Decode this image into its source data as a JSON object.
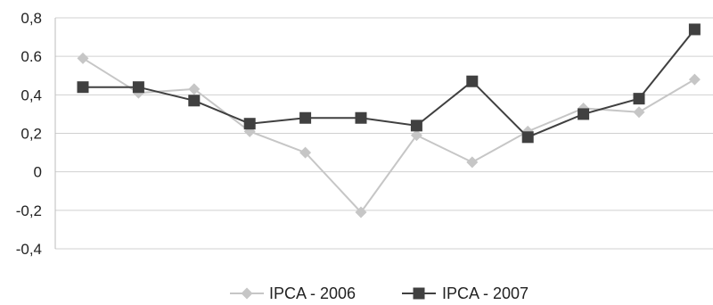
{
  "chart_data": {
    "type": "line",
    "title": "",
    "xlabel": "",
    "ylabel": "",
    "ylim": [
      -0.4,
      0.8
    ],
    "ytick_values": [
      -0.4,
      -0.2,
      0,
      0.2,
      0.4,
      0.6,
      0.8
    ],
    "ytick_labels": [
      "-0,4",
      "-0,2",
      "0",
      "0,2",
      "0,4",
      "0.6",
      "0,8"
    ],
    "grid": "horizontal",
    "legend_position": "bottom",
    "x": [
      1,
      2,
      3,
      4,
      5,
      6,
      7,
      8,
      9,
      10,
      11,
      12
    ],
    "series": [
      {
        "name": "IPCA - 2006",
        "color": "#c6c6c6",
        "marker": "diamond",
        "values": [
          0.59,
          0.41,
          0.43,
          0.21,
          0.1,
          -0.21,
          0.19,
          0.05,
          0.21,
          0.33,
          0.31,
          0.48
        ]
      },
      {
        "name": "IPCA - 2007",
        "color": "#404040",
        "marker": "square",
        "values": [
          0.44,
          0.44,
          0.37,
          0.25,
          0.28,
          0.28,
          0.24,
          0.47,
          0.18,
          0.3,
          0.38,
          0.74
        ]
      }
    ]
  }
}
